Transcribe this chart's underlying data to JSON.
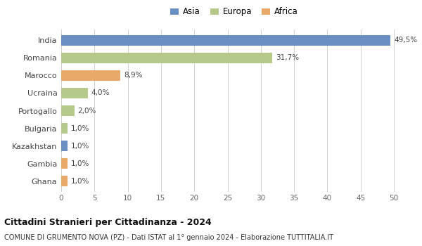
{
  "countries": [
    "India",
    "Romania",
    "Marocco",
    "Ucraina",
    "Portogallo",
    "Bulgaria",
    "Kazakhstan",
    "Gambia",
    "Ghana"
  ],
  "values": [
    49.5,
    31.7,
    8.9,
    4.0,
    2.0,
    1.0,
    1.0,
    1.0,
    1.0
  ],
  "labels": [
    "49,5%",
    "31,7%",
    "8,9%",
    "4,0%",
    "2,0%",
    "1,0%",
    "1,0%",
    "1,0%",
    "1,0%"
  ],
  "colors": [
    "#6b8fc2",
    "#b5c98a",
    "#e8a96b",
    "#b5c98a",
    "#b5c98a",
    "#b5c98a",
    "#6b8fc2",
    "#e8a96b",
    "#e8a96b"
  ],
  "legend": [
    {
      "label": "Asia",
      "color": "#6b8fc2"
    },
    {
      "label": "Europa",
      "color": "#b5c98a"
    },
    {
      "label": "Africa",
      "color": "#e8a96b"
    }
  ],
  "xlim": [
    0,
    52
  ],
  "xticks": [
    0,
    5,
    10,
    15,
    20,
    25,
    30,
    35,
    40,
    45,
    50
  ],
  "title": "Cittadini Stranieri per Cittadinanza - 2024",
  "subtitle": "COMUNE DI GRUMENTO NOVA (PZ) - Dati ISTAT al 1° gennaio 2024 - Elaborazione TUTTITALIA.IT",
  "bg_color": "#ffffff",
  "grid_color": "#d0d0d0",
  "bar_height": 0.6
}
